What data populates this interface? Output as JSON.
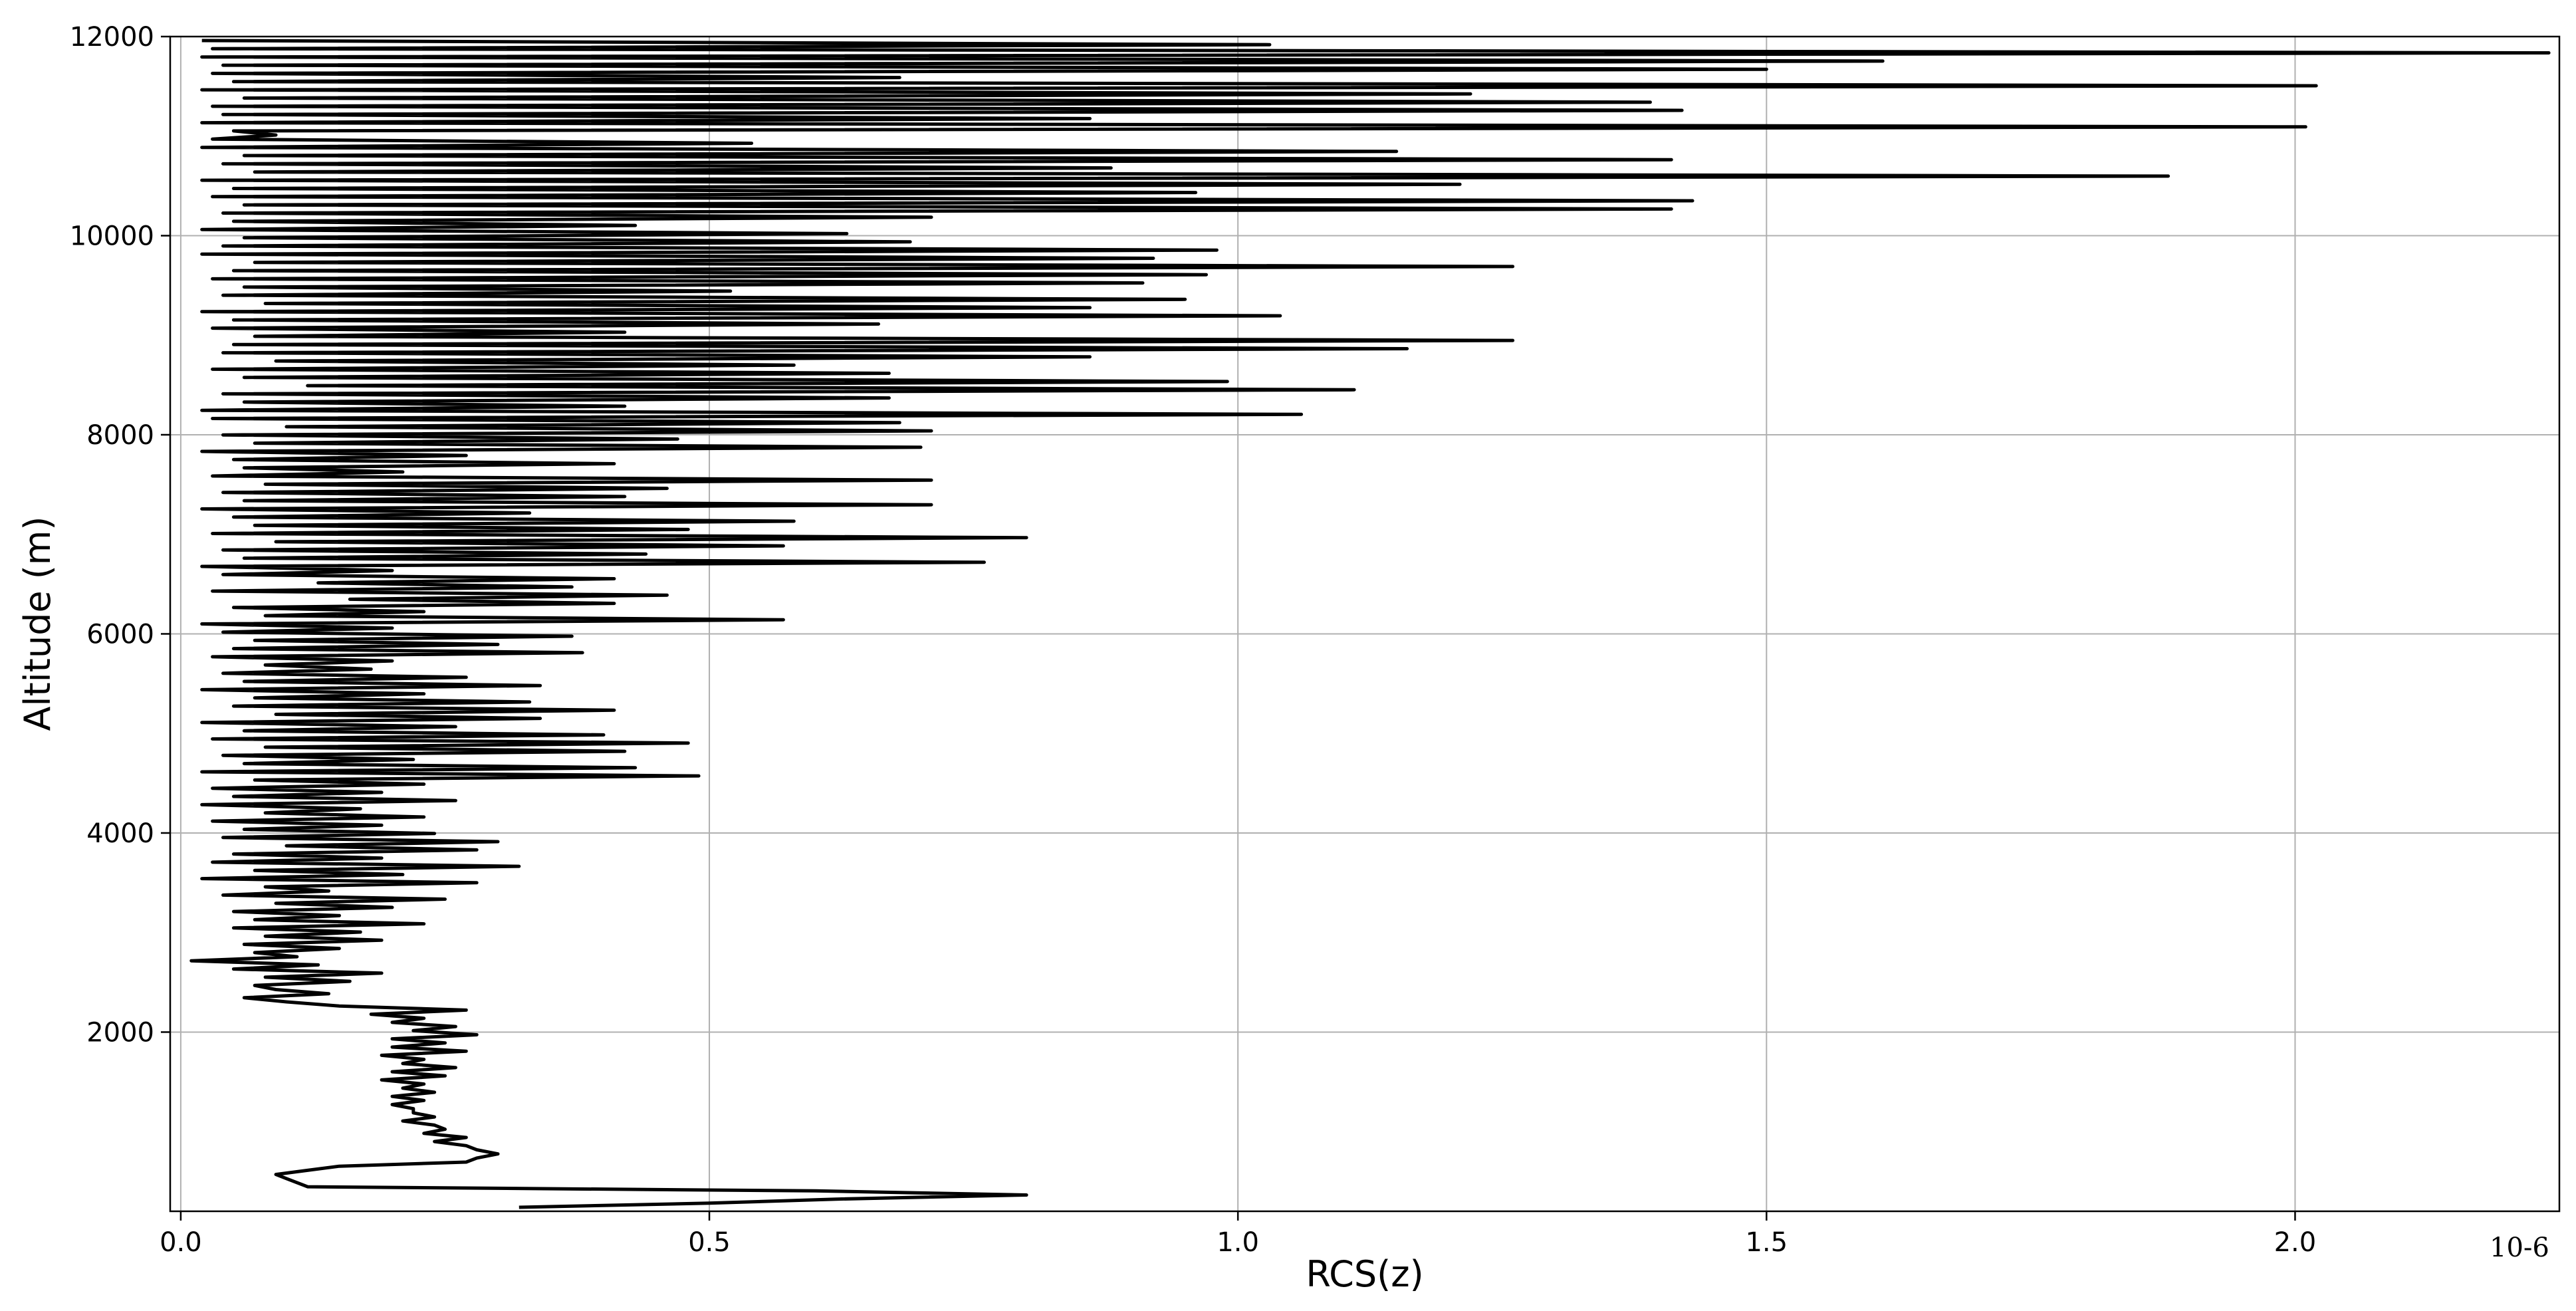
{
  "chart_data": {
    "type": "line",
    "title": "",
    "xlabel": "RCS(z)",
    "ylabel": "Altitude (m)",
    "x_multiplier_label": "10-6",
    "x_scale_exponent": -6,
    "xlim": [
      -0.01,
      2.25
    ],
    "ylim": [
      200,
      12000
    ],
    "x_ticks": [
      0.0,
      0.5,
      1.0,
      1.5,
      2.0
    ],
    "x_tick_labels": [
      "0.0",
      "0.5",
      "1.0",
      "1.5",
      "2.0"
    ],
    "y_ticks": [
      2000,
      4000,
      6000,
      8000,
      10000,
      12000
    ],
    "y_tick_labels": [
      "2000",
      "4000",
      "6000",
      "8000",
      "10000",
      "12000"
    ],
    "grid": true,
    "legend": "none",
    "line_color": "#000000",
    "series": [
      {
        "x": [
          0.32,
          0.5,
          0.62,
          0.8,
          0.6,
          0.12,
          0.11,
          0.1,
          0.09,
          0.12,
          0.15,
          0.27,
          0.28,
          0.3,
          0.28,
          0.27,
          0.24,
          0.27,
          0.23,
          0.25,
          0.24,
          0.21,
          0.24,
          0.22,
          0.22,
          0.2,
          0.23,
          0.2,
          0.24,
          0.21,
          0.23,
          0.19,
          0.25,
          0.2,
          0.26,
          0.21,
          0.23,
          0.19,
          0.27,
          0.2,
          0.25,
          0.2,
          0.28,
          0.22,
          0.26,
          0.2,
          0.23,
          0.18,
          0.27,
          0.15,
          0.1,
          0.06,
          0.14,
          0.09,
          0.07,
          0.16,
          0.08,
          0.19,
          0.05,
          0.13,
          0.01,
          0.11,
          0.07,
          0.15,
          0.06,
          0.19,
          0.08,
          0.17,
          0.05,
          0.23,
          0.07,
          0.15,
          0.05,
          0.2,
          0.09,
          0.25,
          0.04,
          0.14,
          0.08,
          0.28,
          0.02,
          0.21,
          0.07,
          0.32,
          0.03,
          0.19,
          0.05,
          0.28,
          0.1,
          0.3,
          0.04,
          0.24,
          0.06,
          0.19,
          0.03,
          0.23,
          0.08,
          0.17,
          0.02,
          0.26,
          0.05,
          0.19,
          0.03,
          0.23,
          0.07,
          0.49,
          0.02,
          0.43,
          0.06,
          0.22,
          0.04,
          0.42,
          0.08,
          0.48,
          0.03,
          0.4,
          0.06,
          0.26,
          0.02,
          0.34,
          0.09,
          0.41,
          0.05,
          0.33,
          0.07,
          0.23,
          0.02,
          0.34,
          0.06,
          0.27,
          0.04,
          0.18,
          0.08,
          0.2,
          0.03,
          0.38,
          0.05,
          0.3,
          0.07,
          0.37,
          0.04,
          0.2,
          0.02,
          0.57,
          0.08,
          0.23,
          0.05,
          0.41,
          0.16,
          0.46,
          0.03,
          0.37,
          0.13,
          0.41,
          0.04,
          0.2,
          0.02,
          0.76,
          0.06,
          0.44,
          0.04,
          0.57,
          0.09,
          0.8,
          0.03,
          0.48,
          0.07,
          0.58,
          0.05,
          0.33,
          0.02,
          0.71,
          0.06,
          0.42,
          0.04,
          0.46,
          0.08,
          0.71,
          0.03,
          0.21,
          0.06,
          0.41,
          0.05,
          0.27,
          0.02,
          0.7,
          0.07,
          0.47,
          0.04,
          0.71,
          0.1,
          0.68,
          0.03,
          1.06,
          0.02,
          0.42,
          0.06,
          0.67,
          0.04,
          1.11,
          0.12,
          0.99,
          0.06,
          0.67,
          0.03,
          0.58,
          0.09,
          0.86,
          0.04,
          1.16,
          0.05,
          1.26,
          0.07,
          0.42,
          0.03,
          0.66,
          0.05,
          1.04,
          0.02,
          0.86,
          0.08,
          0.95,
          0.04,
          0.52,
          0.06,
          0.91,
          0.03,
          0.97,
          0.05,
          1.26,
          0.07,
          0.92,
          0.02,
          0.98,
          0.04,
          0.69,
          0.06,
          0.63,
          0.02,
          0.43,
          0.05,
          0.71,
          0.04,
          1.41,
          0.06,
          1.43,
          0.03,
          0.96,
          0.05,
          1.21,
          0.02,
          1.88,
          0.07,
          0.88,
          0.04,
          1.41,
          0.06,
          1.15,
          0.02,
          0.54,
          0.03,
          0.09,
          0.05,
          2.01,
          0.02,
          0.86,
          0.04,
          1.42,
          0.03,
          1.39,
          0.06,
          1.22,
          0.02,
          2.02,
          0.05,
          0.68,
          0.03,
          1.5,
          0.04,
          1.61,
          0.02,
          2.24,
          0.03,
          1.03,
          0.02
        ]
      }
    ]
  }
}
